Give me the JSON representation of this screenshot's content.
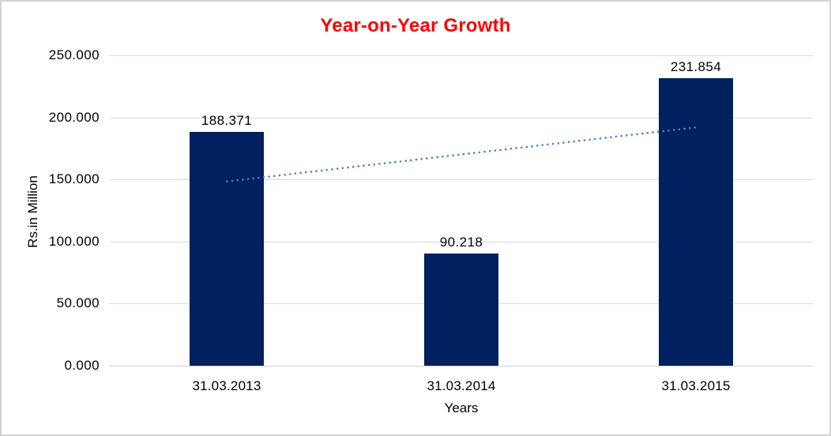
{
  "frame": {
    "background": "#ffffff",
    "border_color": "#d3d3d3"
  },
  "chart_data": {
    "type": "bar",
    "title": "Year-on-Year Growth",
    "title_color": "#ff0000",
    "xlabel": "Years",
    "ylabel": "Rs.in Million",
    "categories": [
      "31.03.2013",
      "31.03.2014",
      "31.03.2015"
    ],
    "values": [
      188.371,
      90.218,
      231.854
    ],
    "data_labels": [
      "188.371",
      "90.218",
      "231.854"
    ],
    "ylim": [
      0,
      250
    ],
    "y_ticks": [
      0,
      50,
      100,
      150,
      200,
      250
    ],
    "y_tick_labels": [
      "0.000",
      "50.000",
      "100.000",
      "150.000",
      "200.000",
      "250.000"
    ],
    "grid": "horizontal",
    "legend": "none",
    "bar_color": "#002060",
    "gridline_color": "#d9d9d9",
    "axis_line_color": "#cfcfcf",
    "trendline": {
      "type": "linear",
      "style": "dotted",
      "color": "#4f81bd",
      "start_value": 148.4,
      "end_value": 191.9
    }
  }
}
